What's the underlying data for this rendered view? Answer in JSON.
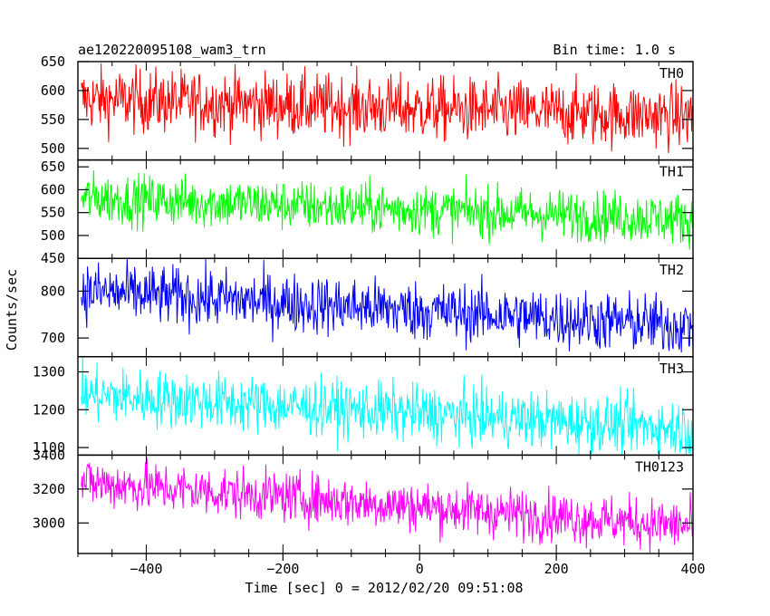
{
  "header": {
    "title": "ae120220095108_wam3_trn",
    "bin_time": "Bin time: 1.0 s"
  },
  "chart_data": {
    "type": "line",
    "title": "ae120220095108_wam3_trn",
    "subtitle": "Bin time: 1.0 s",
    "xlabel": "Time [sec] 0 = 2012/02/20 09:51:08",
    "ylabel": "Counts/sec",
    "xlim": [
      -500,
      400
    ],
    "x_ticks": [
      -400,
      -200,
      0,
      200,
      400
    ],
    "x_step_sec": 1,
    "grid": false,
    "panels": [
      {
        "name": "TH0",
        "color": "#ff0000",
        "ylim": [
          480,
          650
        ],
        "y_ticks": [
          500,
          550,
          600,
          650
        ],
        "trend_start": 585,
        "trend_end": 555,
        "noise": 28
      },
      {
        "name": "TH1",
        "color": "#00ff00",
        "ylim": [
          450,
          665
        ],
        "y_ticks": [
          450,
          500,
          550,
          600,
          650
        ],
        "trend_start": 582,
        "trend_end": 535,
        "noise": 28
      },
      {
        "name": "TH2",
        "color": "#0000ff",
        "ylim": [
          660,
          870
        ],
        "y_ticks": [
          700,
          800
        ],
        "trend_start": 800,
        "trend_end": 725,
        "noise": 32
      },
      {
        "name": "TH3",
        "color": "#00ffff",
        "ylim": [
          1080,
          1340
        ],
        "y_ticks": [
          1100,
          1200,
          1300
        ],
        "trend_start": 1240,
        "trend_end": 1150,
        "noise": 38
      },
      {
        "name": "TH0123",
        "color": "#ff00ff",
        "ylim": [
          2820,
          3400
        ],
        "y_ticks": [
          3000,
          3200,
          3400
        ],
        "trend_start": 3240,
        "trend_end": 2980,
        "noise": 75
      }
    ]
  }
}
